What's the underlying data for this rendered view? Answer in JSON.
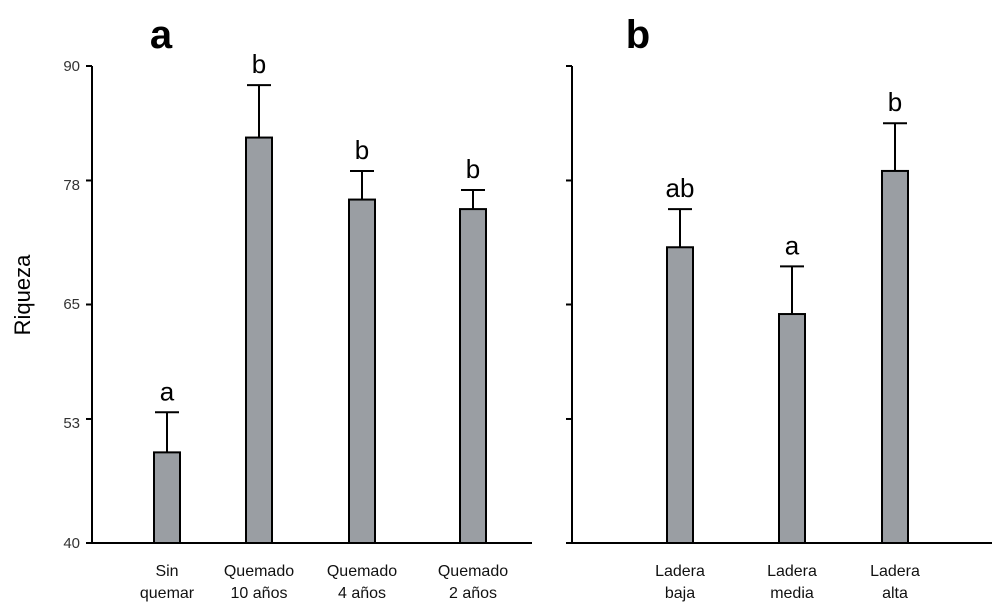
{
  "chart_data": {
    "type": "bar",
    "ylabel": "Riqueza",
    "ylim": [
      40,
      90
    ],
    "yticks": [
      "90",
      "78",
      "65",
      "53",
      "40"
    ],
    "bar_color": "#9a9ea3",
    "panels": [
      {
        "label": "a",
        "categories": [
          [
            "Sin",
            "quemar"
          ],
          [
            "Quemado",
            "10 años"
          ],
          [
            "Quemado",
            "4 años"
          ],
          [
            "Quemado",
            "2 años"
          ]
        ],
        "values": [
          49.5,
          82.5,
          76,
          75
        ],
        "errors": [
          4.2,
          5.5,
          3.0,
          2.0
        ],
        "significance": [
          "a",
          "b",
          "b",
          "b"
        ]
      },
      {
        "label": "b",
        "categories": [
          [
            "Ladera",
            "baja"
          ],
          [
            "Ladera",
            "media"
          ],
          [
            "Ladera",
            "alta"
          ]
        ],
        "values": [
          71,
          64,
          79
        ],
        "errors": [
          4.0,
          5.0,
          5.0
        ],
        "significance": [
          "ab",
          "a",
          "b"
        ]
      }
    ]
  }
}
